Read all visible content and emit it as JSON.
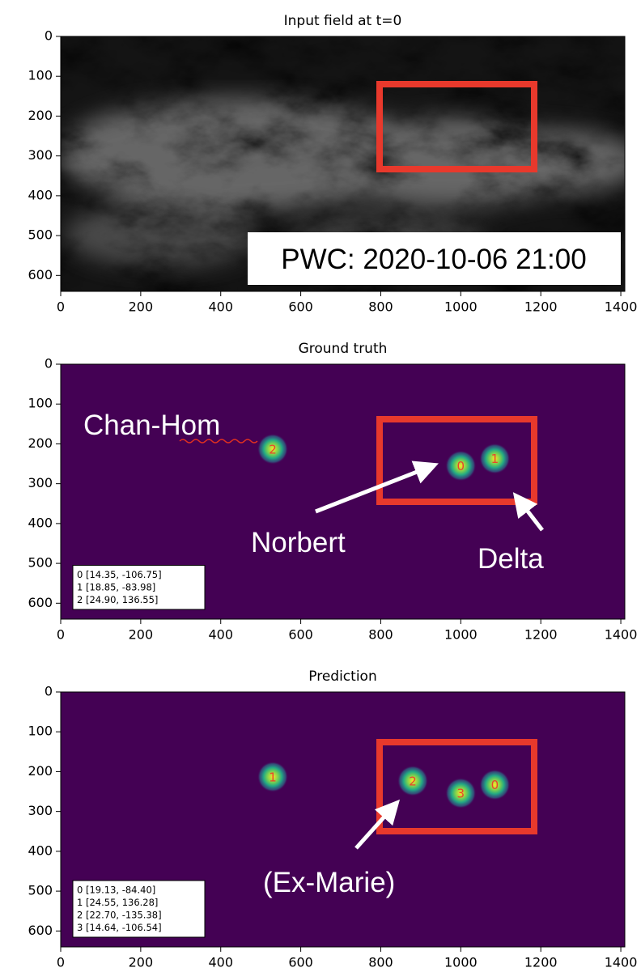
{
  "chart_data": [
    {
      "type": "image",
      "title": "Input field at t=0",
      "annotations": [
        "PWC: 2020-10-06 21:00"
      ],
      "xlim": [
        0,
        1410
      ],
      "ylim": [
        640,
        0
      ],
      "xticks": [
        0,
        200,
        400,
        600,
        800,
        1000,
        1200,
        1400
      ],
      "yticks": [
        0,
        100,
        200,
        300,
        400,
        500,
        600
      ]
    },
    {
      "type": "scatter",
      "title": "Ground truth",
      "x": [
        1000,
        1085,
        530
      ],
      "y": [
        255,
        237,
        213
      ],
      "point_labels": [
        "0",
        "1",
        "2"
      ],
      "legend": [
        "0 [14.35, -106.75]",
        "1 [18.85, -83.98]",
        "2 [24.90, 136.55]"
      ],
      "annotations": [
        "Chan-Hom",
        "Norbert",
        "Delta"
      ],
      "xlim": [
        0,
        1410
      ],
      "ylim": [
        640,
        0
      ],
      "xticks": [
        0,
        200,
        400,
        600,
        800,
        1000,
        1200,
        1400
      ],
      "yticks": [
        0,
        100,
        200,
        300,
        400,
        500,
        600
      ]
    },
    {
      "type": "scatter",
      "title": "Prediction",
      "x": [
        1085,
        530,
        880,
        1000
      ],
      "y": [
        233,
        213,
        223,
        254
      ],
      "point_labels": [
        "0",
        "1",
        "2",
        "3"
      ],
      "legend": [
        "0 [19.13, -84.40]",
        "1 [24.55, 136.28]",
        "2 [22.70, -135.38]",
        "3 [14.64, -106.54]"
      ],
      "annotations": [
        "(Ex-Marie)"
      ],
      "xlim": [
        0,
        1410
      ],
      "ylim": [
        640,
        0
      ],
      "xticks": [
        0,
        200,
        400,
        600,
        800,
        1000,
        1200,
        1400
      ],
      "yticks": [
        0,
        100,
        200,
        300,
        400,
        500,
        600
      ]
    }
  ]
}
